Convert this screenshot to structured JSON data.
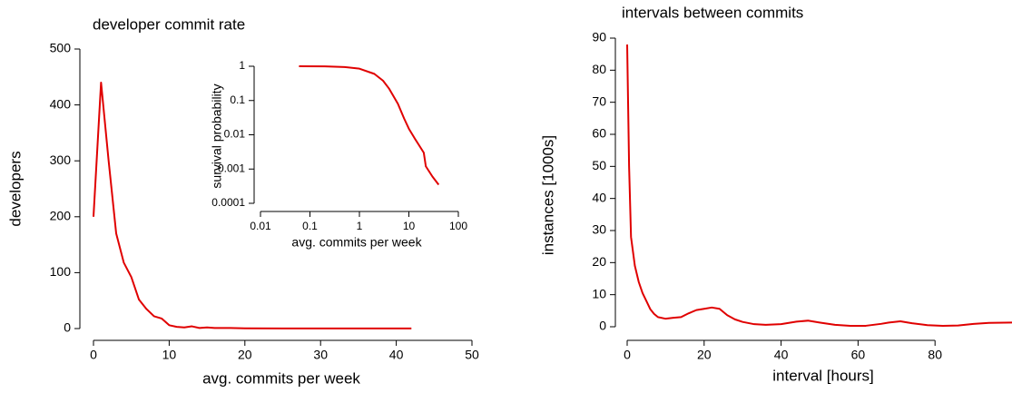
{
  "chart_data": [
    {
      "type": "line",
      "title": "developer commit rate",
      "xlabel": "avg. commits per week",
      "ylabel": "developers",
      "x": [
        0,
        1,
        2,
        3,
        4,
        5,
        6,
        7,
        8,
        9,
        10,
        11,
        12,
        13,
        14,
        15,
        16,
        18,
        20,
        25,
        30,
        35,
        42
      ],
      "values": [
        200,
        440,
        300,
        170,
        118,
        92,
        52,
        35,
        22,
        18,
        6,
        3,
        2,
        4,
        1,
        2,
        1,
        1,
        0.5,
        0.3,
        0.2,
        0.2,
        0.2
      ],
      "color": "#e00000",
      "xlim": [
        0,
        50
      ],
      "ylim": [
        0,
        500
      ],
      "xticks": [
        0,
        10,
        20,
        30,
        40,
        50
      ],
      "yticks": [
        0,
        100,
        200,
        300,
        400,
        500
      ]
    },
    {
      "type": "line",
      "xlabel": "avg. commits per week",
      "ylabel": "survival probability",
      "xlog": true,
      "ylog": true,
      "x": [
        0.06,
        0.2,
        0.5,
        1,
        2,
        3,
        4,
        6,
        8,
        10,
        13,
        16,
        20,
        22,
        30,
        40
      ],
      "values": [
        1,
        0.99,
        0.95,
        0.85,
        0.6,
        0.38,
        0.22,
        0.08,
        0.03,
        0.015,
        0.008,
        0.005,
        0.003,
        0.0012,
        0.0006,
        0.00035
      ],
      "color": "#e00000",
      "xlim": [
        0.01,
        100
      ],
      "ylim": [
        0.0001,
        1
      ],
      "xticks": [
        0.01,
        0.1,
        1,
        10,
        100
      ],
      "yticks": [
        0.0001,
        0.001,
        0.01,
        0.1,
        1
      ]
    },
    {
      "type": "line",
      "title": "intervals between commits",
      "xlabel": "interval [hours]",
      "ylabel": "instances [1000s]",
      "x": [
        0,
        0.5,
        1,
        2,
        3,
        4,
        5,
        6,
        7,
        8,
        10,
        12,
        14,
        16,
        18,
        20,
        22,
        24,
        26,
        28,
        30,
        33,
        36,
        40,
        44,
        47,
        50,
        54,
        58,
        62,
        66,
        68,
        71,
        74,
        78,
        82,
        86,
        90,
        94,
        100
      ],
      "values": [
        88,
        50,
        28,
        19,
        14,
        10.5,
        8,
        5.5,
        4,
        3,
        2.5,
        2.8,
        3,
        4.2,
        5.2,
        5.6,
        6,
        5.6,
        3.6,
        2.3,
        1.5,
        0.8,
        0.6,
        0.8,
        1.6,
        1.9,
        1.3,
        0.6,
        0.3,
        0.3,
        0.9,
        1.3,
        1.7,
        1.1,
        0.5,
        0.3,
        0.4,
        0.9,
        1.2,
        1.3
      ],
      "color": "#e00000",
      "xlim": [
        0,
        100
      ],
      "ylim": [
        0,
        90
      ],
      "xticks": [
        0,
        20,
        40,
        60,
        80
      ],
      "yticks": [
        0,
        10,
        20,
        30,
        40,
        50,
        60,
        70,
        80,
        90
      ]
    }
  ]
}
